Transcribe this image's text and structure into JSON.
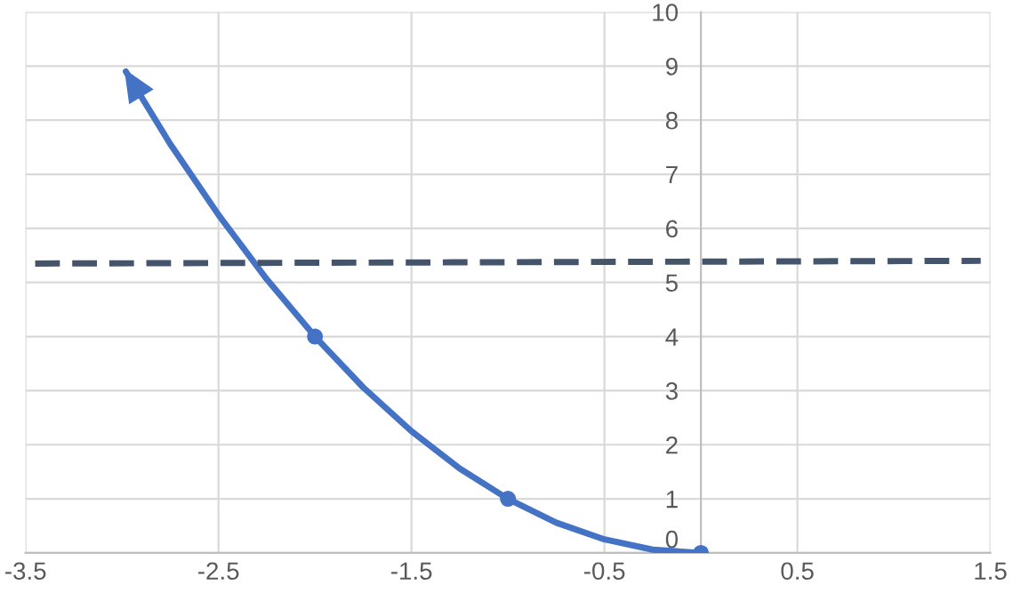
{
  "chart_data": {
    "type": "line",
    "xlim": [
      -3.5,
      1.5
    ],
    "xticks": [
      -3.5,
      -2.5,
      -1.5,
      -0.5,
      0.5,
      1.5
    ],
    "ylim": [
      0,
      10
    ],
    "yticks": [
      0,
      1,
      2,
      3,
      4,
      5,
      6,
      7,
      8,
      9,
      10
    ],
    "grid": true,
    "series": [
      {
        "color": "#4472c4",
        "x": [
          -2.98,
          -2.75,
          -2.5,
          -2.25,
          -2,
          -1.75,
          -1.5,
          -1.25,
          -1,
          -0.75,
          -0.5,
          -0.25,
          0
        ],
        "values": [
          8.9,
          7.56,
          6.25,
          5.06,
          4,
          3.06,
          2.25,
          1.56,
          1,
          0.56,
          0.25,
          0.06,
          0
        ],
        "marker": "none",
        "line_style": "solid"
      },
      {
        "type": "scatter",
        "color": "#4472c4",
        "x": [
          -2,
          -1,
          0
        ],
        "values": [
          4,
          1,
          0
        ],
        "marker": "circle"
      },
      {
        "color": "#44546a",
        "x": [
          -3.45,
          1.45
        ],
        "values": [
          5.35,
          5.4
        ],
        "marker": "none",
        "line_style": "dashed"
      }
    ]
  }
}
